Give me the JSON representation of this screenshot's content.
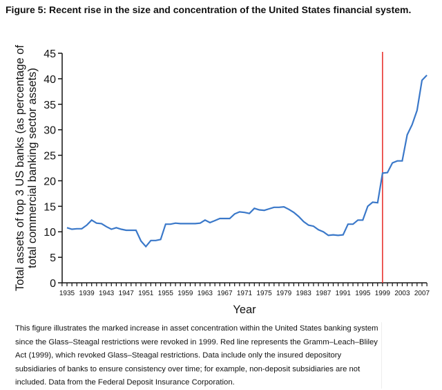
{
  "title": "Figure 5: Recent rise in the size and concentration of the United States financial system.",
  "caption": "This figure illustrates the marked increase in asset concentration within the United States banking system since the Glass–Steagal restrictions were revoked in 1999. Red line represents the Gramm–Leach–Bliley Act (1999), which revoked Glass–Steagal restrictions. Data include only the insured depository subsidiaries of banks to ensure consistency over time; for example, non-deposit subsidiaries are not included. Data from the Federal Deposit Insurance Corporation.",
  "chart_data": {
    "type": "line",
    "xlabel": "Year",
    "ylabel_line1": "Total assets of top 3 US banks (as percentage of",
    "ylabel_line2": "total commercial banking sector assets)",
    "ylim": [
      0,
      45
    ],
    "yticks": [
      0,
      5,
      10,
      15,
      20,
      25,
      30,
      35,
      40,
      45
    ],
    "xlim": [
      1934,
      2008
    ],
    "xticks": [
      1935,
      1939,
      1943,
      1947,
      1951,
      1955,
      1959,
      1963,
      1967,
      1971,
      1975,
      1979,
      1983,
      1987,
      1991,
      1995,
      1999,
      2003,
      2007
    ],
    "grid": false,
    "line_color": "#3a78c9",
    "marker_line": {
      "x": 1999,
      "color": "#e8322e"
    },
    "x": [
      1935,
      1936,
      1937,
      1938,
      1939,
      1940,
      1941,
      1942,
      1943,
      1944,
      1945,
      1946,
      1947,
      1948,
      1949,
      1950,
      1951,
      1952,
      1953,
      1954,
      1955,
      1956,
      1957,
      1958,
      1959,
      1960,
      1961,
      1962,
      1963,
      1964,
      1965,
      1966,
      1967,
      1968,
      1969,
      1970,
      1971,
      1972,
      1973,
      1974,
      1975,
      1976,
      1977,
      1978,
      1979,
      1980,
      1981,
      1982,
      1983,
      1984,
      1985,
      1986,
      1987,
      1988,
      1989,
      1990,
      1991,
      1992,
      1993,
      1994,
      1995,
      1996,
      1997,
      1998,
      1999,
      2000,
      2001,
      2002,
      2003,
      2004,
      2005,
      2006,
      2007,
      2008
    ],
    "values": [
      10.8,
      10.5,
      10.6,
      10.6,
      11.3,
      12.3,
      11.7,
      11.6,
      11.0,
      10.5,
      10.8,
      10.5,
      10.3,
      10.3,
      10.3,
      8.2,
      7.1,
      8.3,
      8.3,
      8.5,
      11.5,
      11.5,
      11.7,
      11.6,
      11.6,
      11.6,
      11.6,
      11.7,
      12.3,
      11.8,
      12.2,
      12.6,
      12.6,
      12.6,
      13.5,
      13.9,
      13.8,
      13.6,
      14.6,
      14.3,
      14.2,
      14.5,
      14.8,
      14.8,
      14.9,
      14.4,
      13.8,
      13.0,
      12.0,
      11.3,
      11.1,
      10.4,
      10.0,
      9.3,
      9.4,
      9.3,
      9.4,
      11.5,
      11.5,
      12.3,
      12.3,
      15.0,
      15.8,
      15.7,
      21.5,
      21.6,
      23.5,
      23.9,
      23.9,
      29.0,
      31.0,
      33.8,
      39.7,
      40.7
    ]
  }
}
